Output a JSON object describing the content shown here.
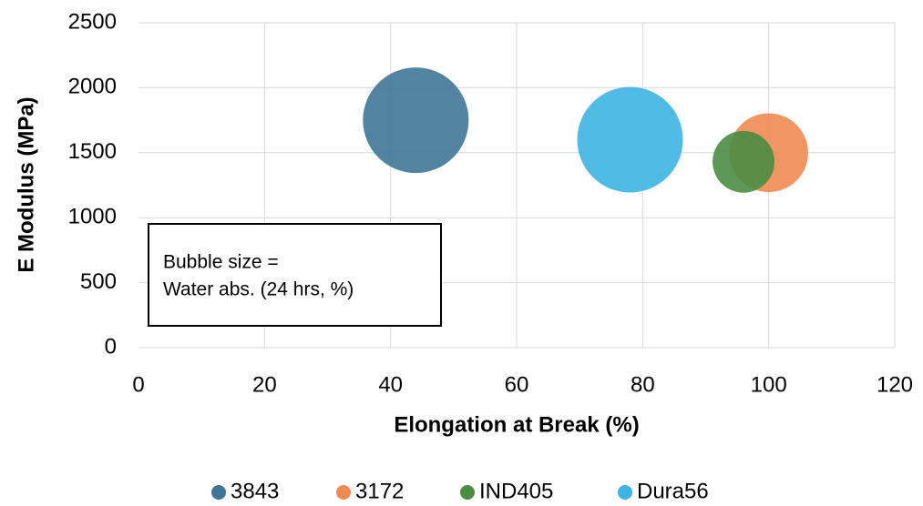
{
  "chart_data": {
    "type": "bubble",
    "xlabel": "Elongation at Break (%)",
    "ylabel": "E Modulus (MPa)",
    "annotation": [
      "Bubble size =",
      "Water abs. (24 hrs, %)"
    ],
    "series": [
      {
        "name": "3843",
        "color": "#3f7597",
        "x": [
          44
        ],
        "values": [
          1750
        ],
        "sizes": [
          0.7
        ]
      },
      {
        "name": "3172",
        "color": "#ef8b52",
        "x": [
          100
        ],
        "values": [
          1500
        ],
        "sizes": [
          0.39
        ]
      },
      {
        "name": "IND405",
        "color": "#4a8c42",
        "x": [
          96
        ],
        "values": [
          1430
        ],
        "sizes": [
          0.24
        ]
      },
      {
        "name": "Dura56",
        "color": "#3db5e3",
        "x": [
          78
        ],
        "values": [
          1600
        ],
        "sizes": [
          0.7
        ]
      }
    ],
    "xlim": [
      0,
      120
    ],
    "xticks": [
      0,
      20,
      40,
      60,
      80,
      100,
      120
    ],
    "ylim": [
      0,
      2500
    ],
    "yticks": [
      0,
      500,
      1000,
      1500,
      2000,
      2500
    ],
    "grid": true,
    "legend": "bottom"
  }
}
